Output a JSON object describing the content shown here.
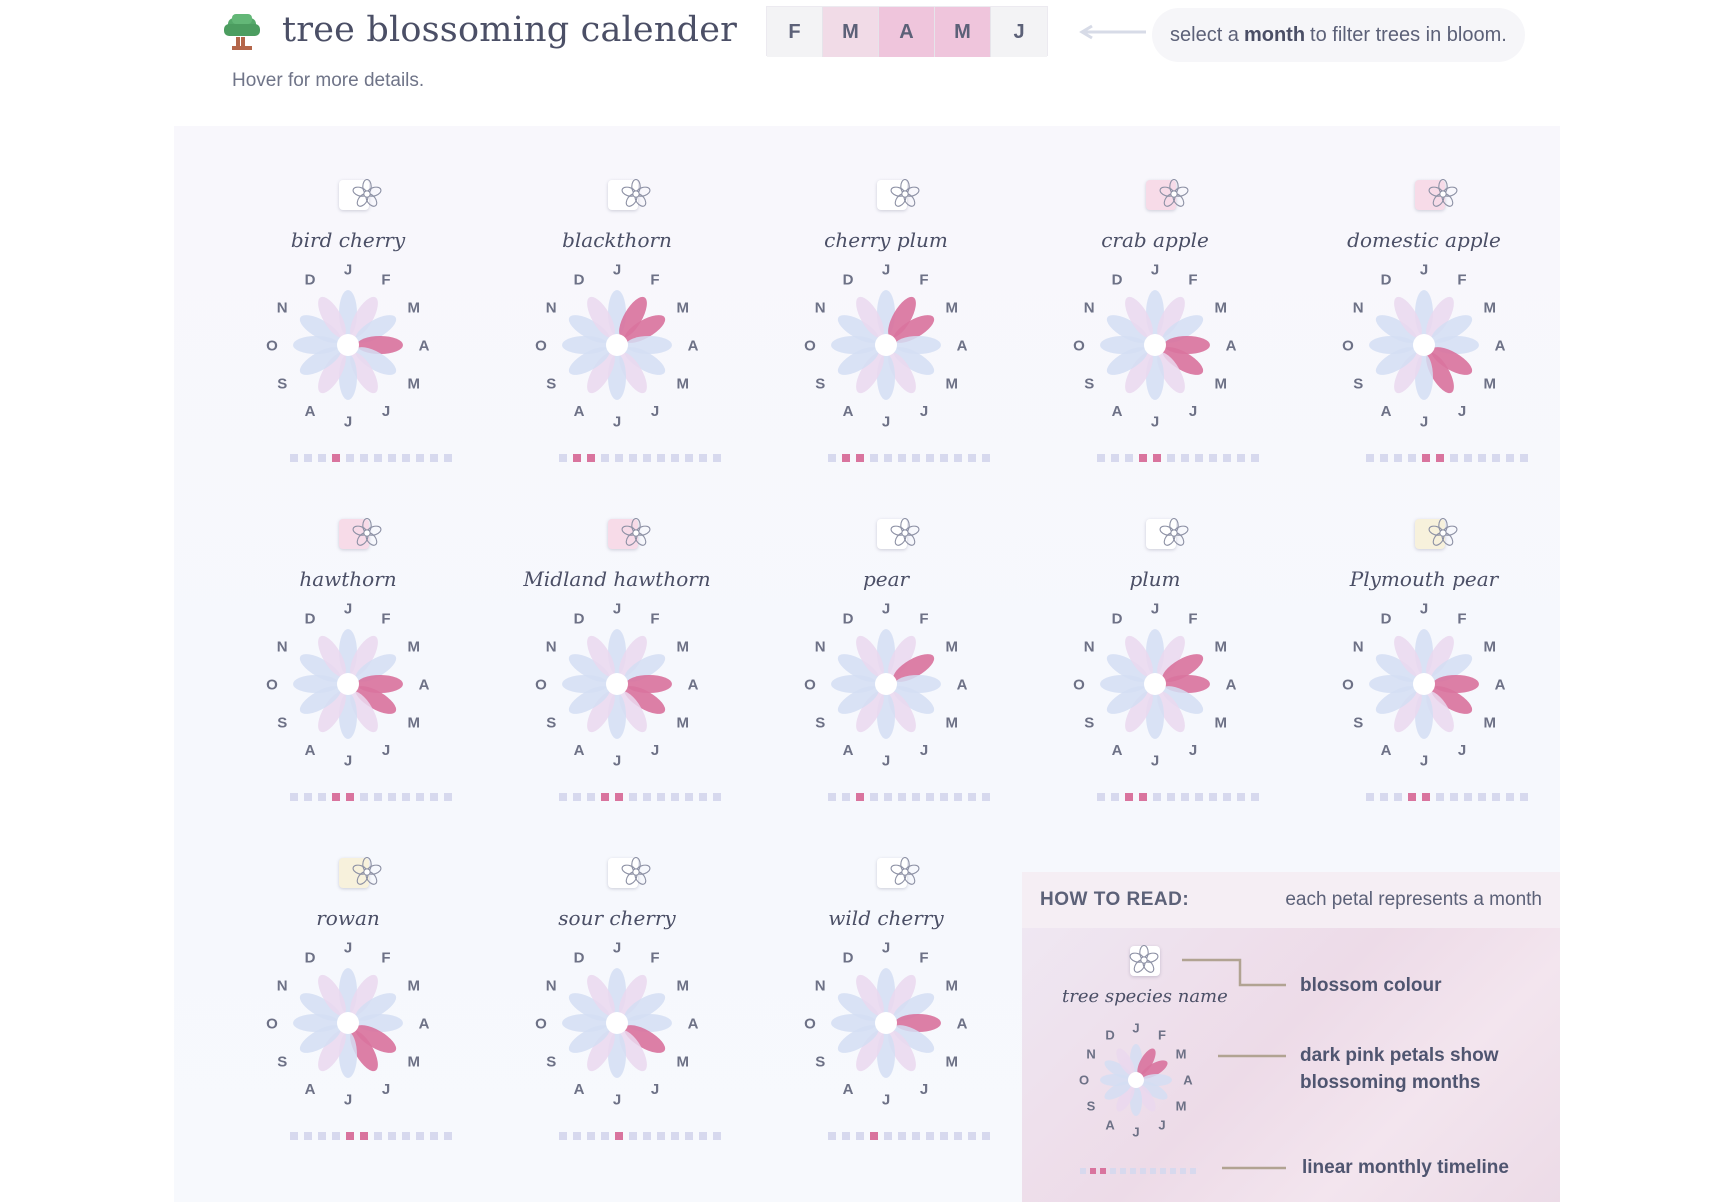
{
  "header": {
    "title": "tree blossoming calender",
    "subtitle": "Hover for more details.",
    "hint_prefix": "select a",
    "hint_bold": "month",
    "hint_suffix": "to filter trees in bloom."
  },
  "month_filter": [
    {
      "label": "F",
      "state": "normal"
    },
    {
      "label": "M",
      "state": "light"
    },
    {
      "label": "A",
      "state": "active"
    },
    {
      "label": "M",
      "state": "active"
    },
    {
      "label": "J",
      "state": "normal"
    }
  ],
  "months": [
    "J",
    "F",
    "M",
    "A",
    "M",
    "J",
    "J",
    "A",
    "S",
    "O",
    "N",
    "D"
  ],
  "colors": {
    "blossom_on": "#d9749e",
    "petal_pink": "#ead8ee",
    "petal_blue": "#d3def3",
    "timeline_off": "#d7d9ee",
    "white_blossom": "#ffffff",
    "pink_blossom": "#f7dbe8",
    "cream_blossom": "#f7f1dc"
  },
  "trees": [
    {
      "name": "bird cherry",
      "blossom": "white",
      "months": [
        3
      ]
    },
    {
      "name": "blackthorn",
      "blossom": "white",
      "months": [
        1,
        2
      ]
    },
    {
      "name": "cherry plum",
      "blossom": "white",
      "months": [
        1,
        2
      ]
    },
    {
      "name": "crab apple",
      "blossom": "pink",
      "months": [
        3,
        4
      ]
    },
    {
      "name": "domestic apple",
      "blossom": "pink",
      "months": [
        4,
        5
      ]
    },
    {
      "name": "hawthorn",
      "blossom": "pink",
      "months": [
        3,
        4
      ]
    },
    {
      "name": "Midland hawthorn",
      "blossom": "pink",
      "months": [
        3,
        4
      ]
    },
    {
      "name": "pear",
      "blossom": "white",
      "months": [
        2
      ]
    },
    {
      "name": "plum",
      "blossom": "white",
      "months": [
        2,
        3
      ]
    },
    {
      "name": "Plymouth pear",
      "blossom": "cream",
      "months": [
        3,
        4
      ]
    },
    {
      "name": "rowan",
      "blossom": "cream",
      "months": [
        4,
        5
      ]
    },
    {
      "name": "sour cherry",
      "blossom": "white",
      "months": [
        4
      ]
    },
    {
      "name": "wild cherry",
      "blossom": "white",
      "months": [
        3
      ]
    }
  ],
  "legend": {
    "title": "HOW TO READ:",
    "description": "each petal represents a month",
    "species_name": "tree species name",
    "blossom_colour": "blossom colour",
    "dark_petals_line1": "dark pink petals show",
    "dark_petals_line2": "blossoming months",
    "timeline": "linear monthly timeline",
    "example_months": [
      1,
      2
    ]
  }
}
